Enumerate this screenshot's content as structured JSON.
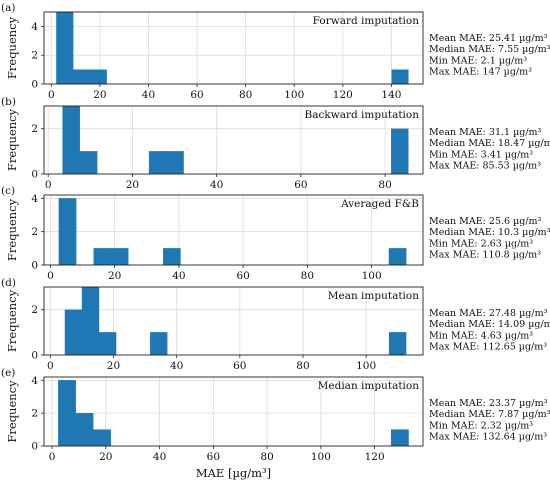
{
  "chart_data": [
    {
      "type": "bar",
      "panel_label": "(a)",
      "title": "Forward imputation",
      "ylabel": "Frequency",
      "xlabel": "",
      "xlim": [
        -3,
        153
      ],
      "ylim": [
        0,
        5
      ],
      "xticks": [
        0,
        20,
        40,
        60,
        80,
        100,
        120,
        140
      ],
      "yticks": [
        0,
        2,
        4
      ],
      "bins": [
        {
          "x0": 2.1,
          "x1": 9.0,
          "count": 5
        },
        {
          "x0": 9.0,
          "x1": 15.9,
          "count": 1
        },
        {
          "x0": 15.9,
          "x1": 22.8,
          "count": 1
        },
        {
          "x0": 140.1,
          "x1": 147.0,
          "count": 1
        }
      ],
      "stats": [
        "Mean MAE: 25.41 µg/m³",
        "Median MAE: 7.55 µg/m³",
        "Min MAE: 2.1 µg/m³",
        "Max MAE: 147 µg/m³"
      ],
      "grid": true,
      "color": "#1f77b4"
    },
    {
      "type": "bar",
      "panel_label": "(b)",
      "title": "Backward imputation",
      "ylabel": "Frequency",
      "xlabel": "",
      "xlim": [
        -1,
        89
      ],
      "ylim": [
        0,
        3
      ],
      "xticks": [
        0,
        20,
        40,
        60,
        80
      ],
      "yticks": [
        0,
        2
      ],
      "bins": [
        {
          "x0": 3.41,
          "x1": 7.52,
          "count": 3
        },
        {
          "x0": 7.52,
          "x1": 11.62,
          "count": 1
        },
        {
          "x0": 23.94,
          "x1": 28.05,
          "count": 1
        },
        {
          "x0": 28.05,
          "x1": 32.15,
          "count": 1
        },
        {
          "x0": 81.43,
          "x1": 85.53,
          "count": 2
        }
      ],
      "stats": [
        "Mean MAE: 31.1 µg/m³",
        "Median MAE: 18.47 µg/m³",
        "Min MAE: 3.41 µg/m³",
        "Max MAE: 85.53 µg/m³"
      ],
      "grid": true,
      "color": "#1f77b4"
    },
    {
      "type": "bar",
      "panel_label": "(c)",
      "title": "Averaged F&B",
      "ylabel": "Frequency",
      "xlabel": "",
      "xlim": [
        -2,
        116
      ],
      "ylim": [
        0,
        4.2
      ],
      "xticks": [
        0,
        20,
        40,
        60,
        80,
        100
      ],
      "yticks": [
        0,
        2,
        4
      ],
      "bins": [
        {
          "x0": 2.63,
          "x1": 8.04,
          "count": 4
        },
        {
          "x0": 13.45,
          "x1": 18.86,
          "count": 1
        },
        {
          "x0": 18.86,
          "x1": 24.27,
          "count": 1
        },
        {
          "x0": 35.09,
          "x1": 40.5,
          "count": 1
        },
        {
          "x0": 105.39,
          "x1": 110.8,
          "count": 1
        }
      ],
      "stats": [
        "Mean MAE: 25.6 µg/m³",
        "Median MAE: 10.3 µg/m³",
        "Min MAE: 2.63 µg/m³",
        "Max MAE: 110.8 µg/m³"
      ],
      "grid": true,
      "color": "#1f77b4"
    },
    {
      "type": "bar",
      "panel_label": "(d)",
      "title": "Mean imputation",
      "ylabel": "Frequency",
      "xlabel": "",
      "xlim": [
        -2,
        118
      ],
      "ylim": [
        0,
        3
      ],
      "xticks": [
        0,
        20,
        40,
        60,
        80,
        100
      ],
      "yticks": [
        0,
        2
      ],
      "bins": [
        {
          "x0": 4.63,
          "x1": 10.03,
          "count": 2
        },
        {
          "x0": 10.03,
          "x1": 15.43,
          "count": 3
        },
        {
          "x0": 15.43,
          "x1": 20.83,
          "count": 1
        },
        {
          "x0": 31.63,
          "x1": 37.03,
          "count": 1
        },
        {
          "x0": 107.25,
          "x1": 112.65,
          "count": 1
        }
      ],
      "stats": [
        "Mean MAE: 27.48 µg/m³",
        "Median MAE: 14.09 µg/m³",
        "Min MAE: 4.63 µg/m³",
        "Max MAE: 112.65 µg/m³"
      ],
      "grid": true,
      "color": "#1f77b4"
    },
    {
      "type": "bar",
      "panel_label": "(e)",
      "title": "Median imputation",
      "ylabel": "Frequency",
      "xlabel": "MAE [µg/m³]",
      "xlim": [
        -3,
        138
      ],
      "ylim": [
        0,
        4.2
      ],
      "xticks": [
        0,
        20,
        40,
        60,
        80,
        100,
        120
      ],
      "yticks": [
        0,
        2,
        4
      ],
      "bins": [
        {
          "x0": 2.32,
          "x1": 8.84,
          "count": 4
        },
        {
          "x0": 8.84,
          "x1": 15.35,
          "count": 2
        },
        {
          "x0": 15.35,
          "x1": 21.87,
          "count": 1
        },
        {
          "x0": 126.12,
          "x1": 132.64,
          "count": 1
        }
      ],
      "stats": [
        "Mean MAE: 23.37 µg/m³",
        "Median MAE: 7.87 µg/m³",
        "Min MAE: 2.32 µg/m³",
        "Max MAE: 132.64 µg/m³"
      ],
      "grid": true,
      "color": "#1f77b4"
    }
  ]
}
